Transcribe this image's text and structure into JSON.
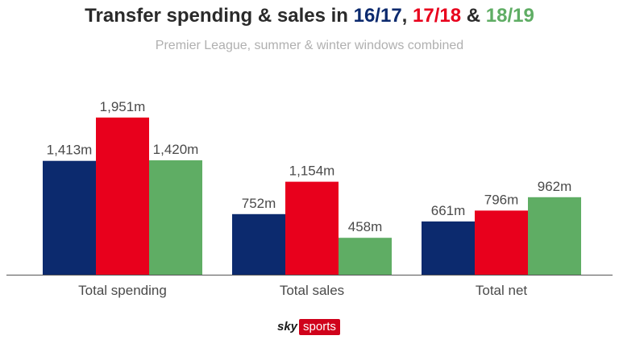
{
  "chart_data": {
    "type": "bar",
    "title": {
      "prefix": "Transfer spending & sales in ",
      "season_1": "16/17",
      "sep_1": ", ",
      "season_2": "17/18",
      "sep_2": " & ",
      "season_3": "18/19"
    },
    "subtitle": "Premier League, summer & winter windows combined",
    "categories": [
      "Total spending",
      "Total sales",
      "Total net"
    ],
    "series": [
      {
        "name": "16/17",
        "color": "#0c2a6e",
        "values": [
          1413,
          752,
          661
        ],
        "labels": [
          "1,413m",
          "752m",
          "661m"
        ]
      },
      {
        "name": "17/18",
        "color": "#e8001c",
        "values": [
          1951,
          1154,
          796
        ],
        "labels": [
          "1,951m",
          "1,154m",
          "796m"
        ]
      },
      {
        "name": "18/19",
        "color": "#5fad64",
        "values": [
          1420,
          458,
          962
        ],
        "labels": [
          "1,420m",
          "458m",
          "962m"
        ]
      }
    ],
    "ylim": [
      0,
      2000
    ],
    "grid": false,
    "legend": "title"
  },
  "branding": {
    "logo_sky": "sky",
    "logo_sports": "sports"
  }
}
